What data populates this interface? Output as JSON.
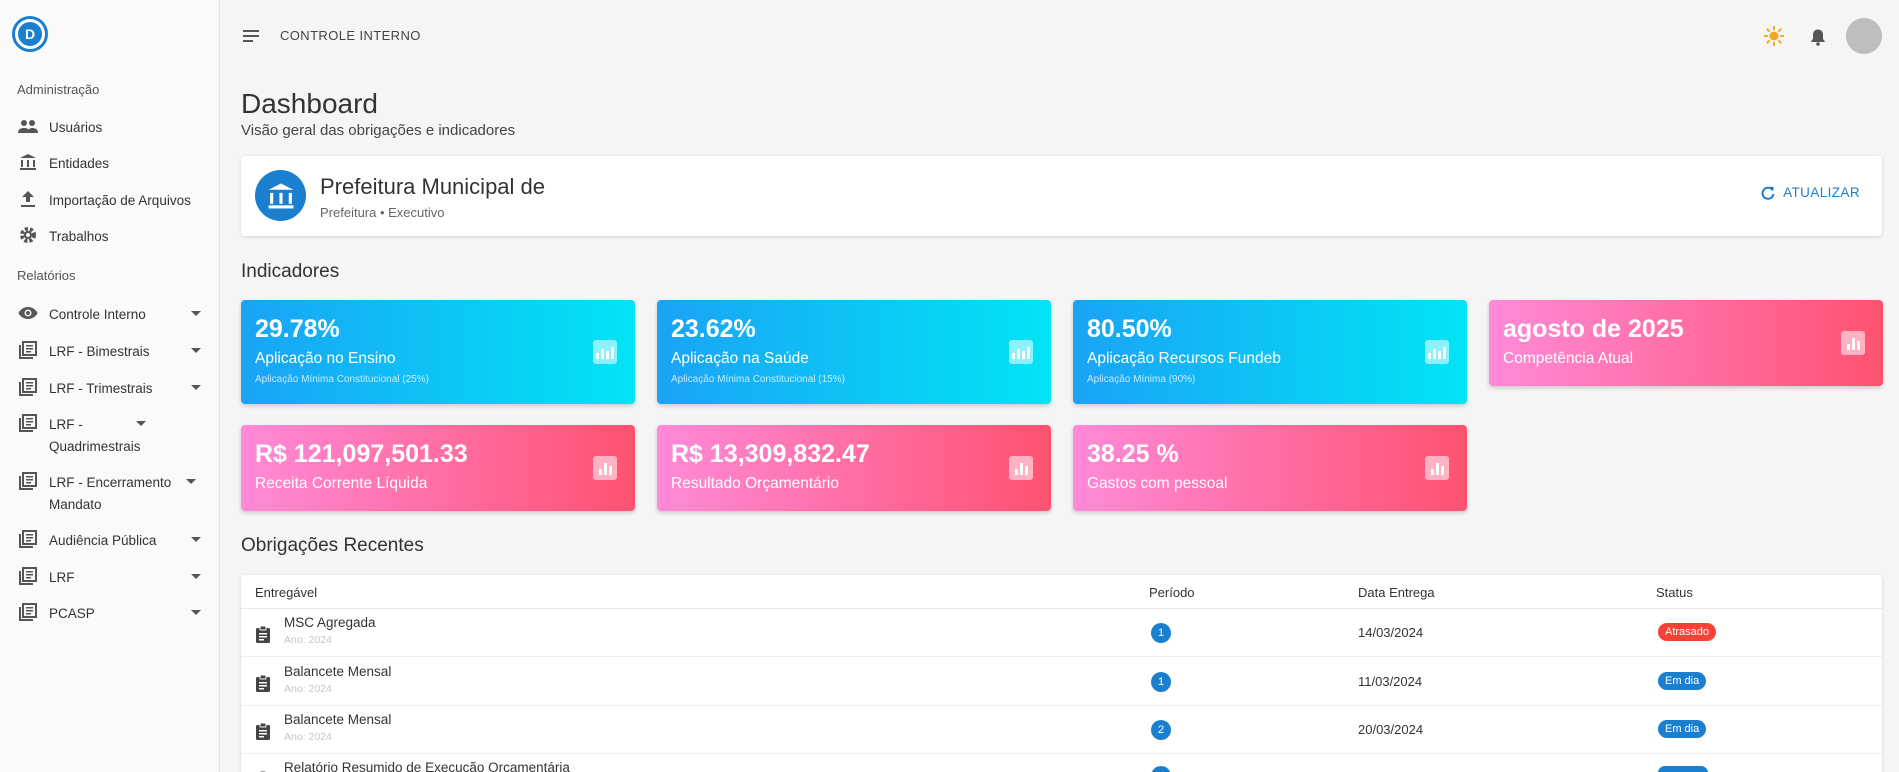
{
  "app": {
    "logo_text": "D"
  },
  "sidebar": {
    "admin_title": "Administração",
    "admin_items": [
      {
        "label": "Usuários",
        "icon": "users-icon"
      },
      {
        "label": "Entidades",
        "icon": "bank-icon"
      },
      {
        "label": "Importação de Arquivos",
        "icon": "upload-icon"
      },
      {
        "label": "Trabalhos",
        "icon": "gear-icon"
      }
    ],
    "reports_title": "Relatórios",
    "report_items": [
      {
        "label": "Controle Interno",
        "icon": "eye-icon"
      },
      {
        "label": "LRF - Bimestrais",
        "icon": "library-icon"
      },
      {
        "label": "LRF - Trimestrais",
        "icon": "library-icon"
      },
      {
        "label": "LRF - Quadrimestrais",
        "icon": "library-icon"
      },
      {
        "label": "LRF - Encerramento Mandato",
        "icon": "library-icon"
      },
      {
        "label": "Audiência Pública",
        "icon": "library-icon"
      },
      {
        "label": "LRF",
        "icon": "library-icon"
      },
      {
        "label": "PCASP",
        "icon": "library-icon"
      }
    ]
  },
  "header": {
    "title": "CONTROLE INTERNO"
  },
  "page": {
    "title": "Dashboard",
    "subtitle": "Visão geral das obrigações e indicadores"
  },
  "entity": {
    "name": "Prefeitura Municipal de",
    "subtitle": "Prefeitura • Executivo",
    "refresh_label": "ATUALIZAR"
  },
  "indicators": {
    "title": "Indicadores",
    "cards": [
      {
        "value": "29.78%",
        "label": "Aplicação no Ensino",
        "hint": "Aplicação Mínima Constitucional (25%)",
        "color": "#1aa3f5"
      },
      {
        "value": "23.62%",
        "label": "Aplicação na Saúde",
        "hint": "Aplicação Mínima Constitucional (15%)",
        "color": "#1aa3f5"
      },
      {
        "value": "80.50%",
        "label": "Aplicação Recursos Fundeb",
        "hint": "Aplicação Mínima (90%)",
        "color": "#1aa3f5"
      },
      {
        "value": "agosto de 2025",
        "label": "Competência Atual",
        "hint": "",
        "color": "#ff5270"
      },
      {
        "value": "R$ 121,097,501.33",
        "label": "Receita Corrente Líquida",
        "hint": "",
        "color": "#ff5270"
      },
      {
        "value": "R$ 13,309,832.47",
        "label": "Resultado Orçamentário",
        "hint": "",
        "color": "#ff5270"
      },
      {
        "value": "38.25 %",
        "label": "Gastos com pessoal",
        "hint": "",
        "color": "#ff5270"
      }
    ]
  },
  "obligations": {
    "title": "Obrigações Recentes",
    "columns": [
      "Entregável",
      "Período",
      "Data Entrega",
      "Status"
    ],
    "rows": [
      {
        "name": "MSC Agregada",
        "year": "Ano: 2024",
        "period": "1",
        "date": "14/03/2024",
        "status": "Atrasado",
        "status_color": "#f44336"
      },
      {
        "name": "Balancete Mensal",
        "year": "Ano: 2024",
        "period": "1",
        "date": "11/03/2024",
        "status": "Em dia",
        "status_color": "#1b7fcf"
      },
      {
        "name": "Balancete Mensal",
        "year": "Ano: 2024",
        "period": "2",
        "date": "20/03/2024",
        "status": "Em dia",
        "status_color": "#1b7fcf"
      },
      {
        "name": "Relatório Resumido de Execução Orçamentária",
        "year": "",
        "period": "",
        "date": "",
        "status": "",
        "status_color": "#1b7fcf"
      }
    ]
  }
}
